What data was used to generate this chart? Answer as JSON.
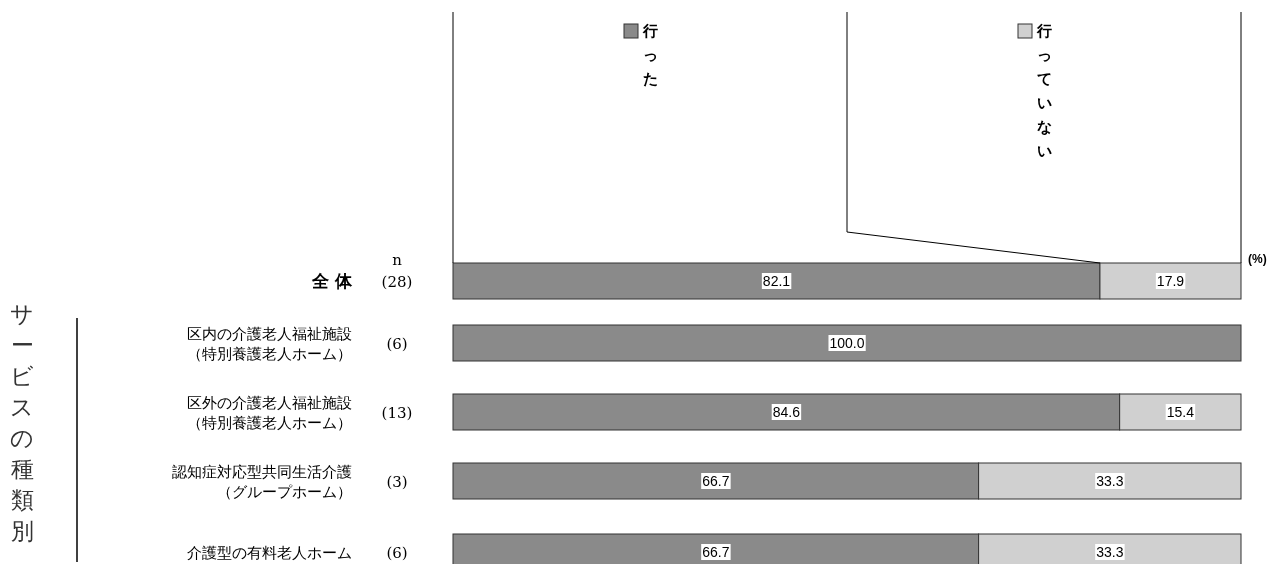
{
  "chart_data": {
    "type": "bar",
    "orientation": "horizontal",
    "stacked": true,
    "xlim": [
      0,
      100
    ],
    "legend": "top",
    "categories": [
      "全 体",
      "区内の介護老人福祉施設（特別養護老人ホーム）",
      "区外の介護老人福祉施設（特別養護老人ホーム）",
      "認知症対応型共同生活介護（グループホーム）",
      "介護型の有料老人ホーム"
    ],
    "series": [
      {
        "name": "行った",
        "color": "#8a8a8a",
        "values": [
          82.1,
          100.0,
          84.6,
          66.7,
          66.7
        ],
        "value_labels": [
          "82.1",
          "100.0",
          "84.6",
          "66.7",
          "66.7"
        ]
      },
      {
        "name": "行っていない",
        "color": "#d0d0d0",
        "values": [
          17.9,
          null,
          15.4,
          33.3,
          33.3
        ],
        "value_labels": [
          "17.9",
          null,
          "15.4",
          "33.3",
          "33.3"
        ]
      }
    ],
    "annotations": [
      "n",
      "(%)",
      "サービスの種類別",
      "(28)",
      "(6)",
      "(13)",
      "(3)",
      "(6)"
    ]
  }
}
